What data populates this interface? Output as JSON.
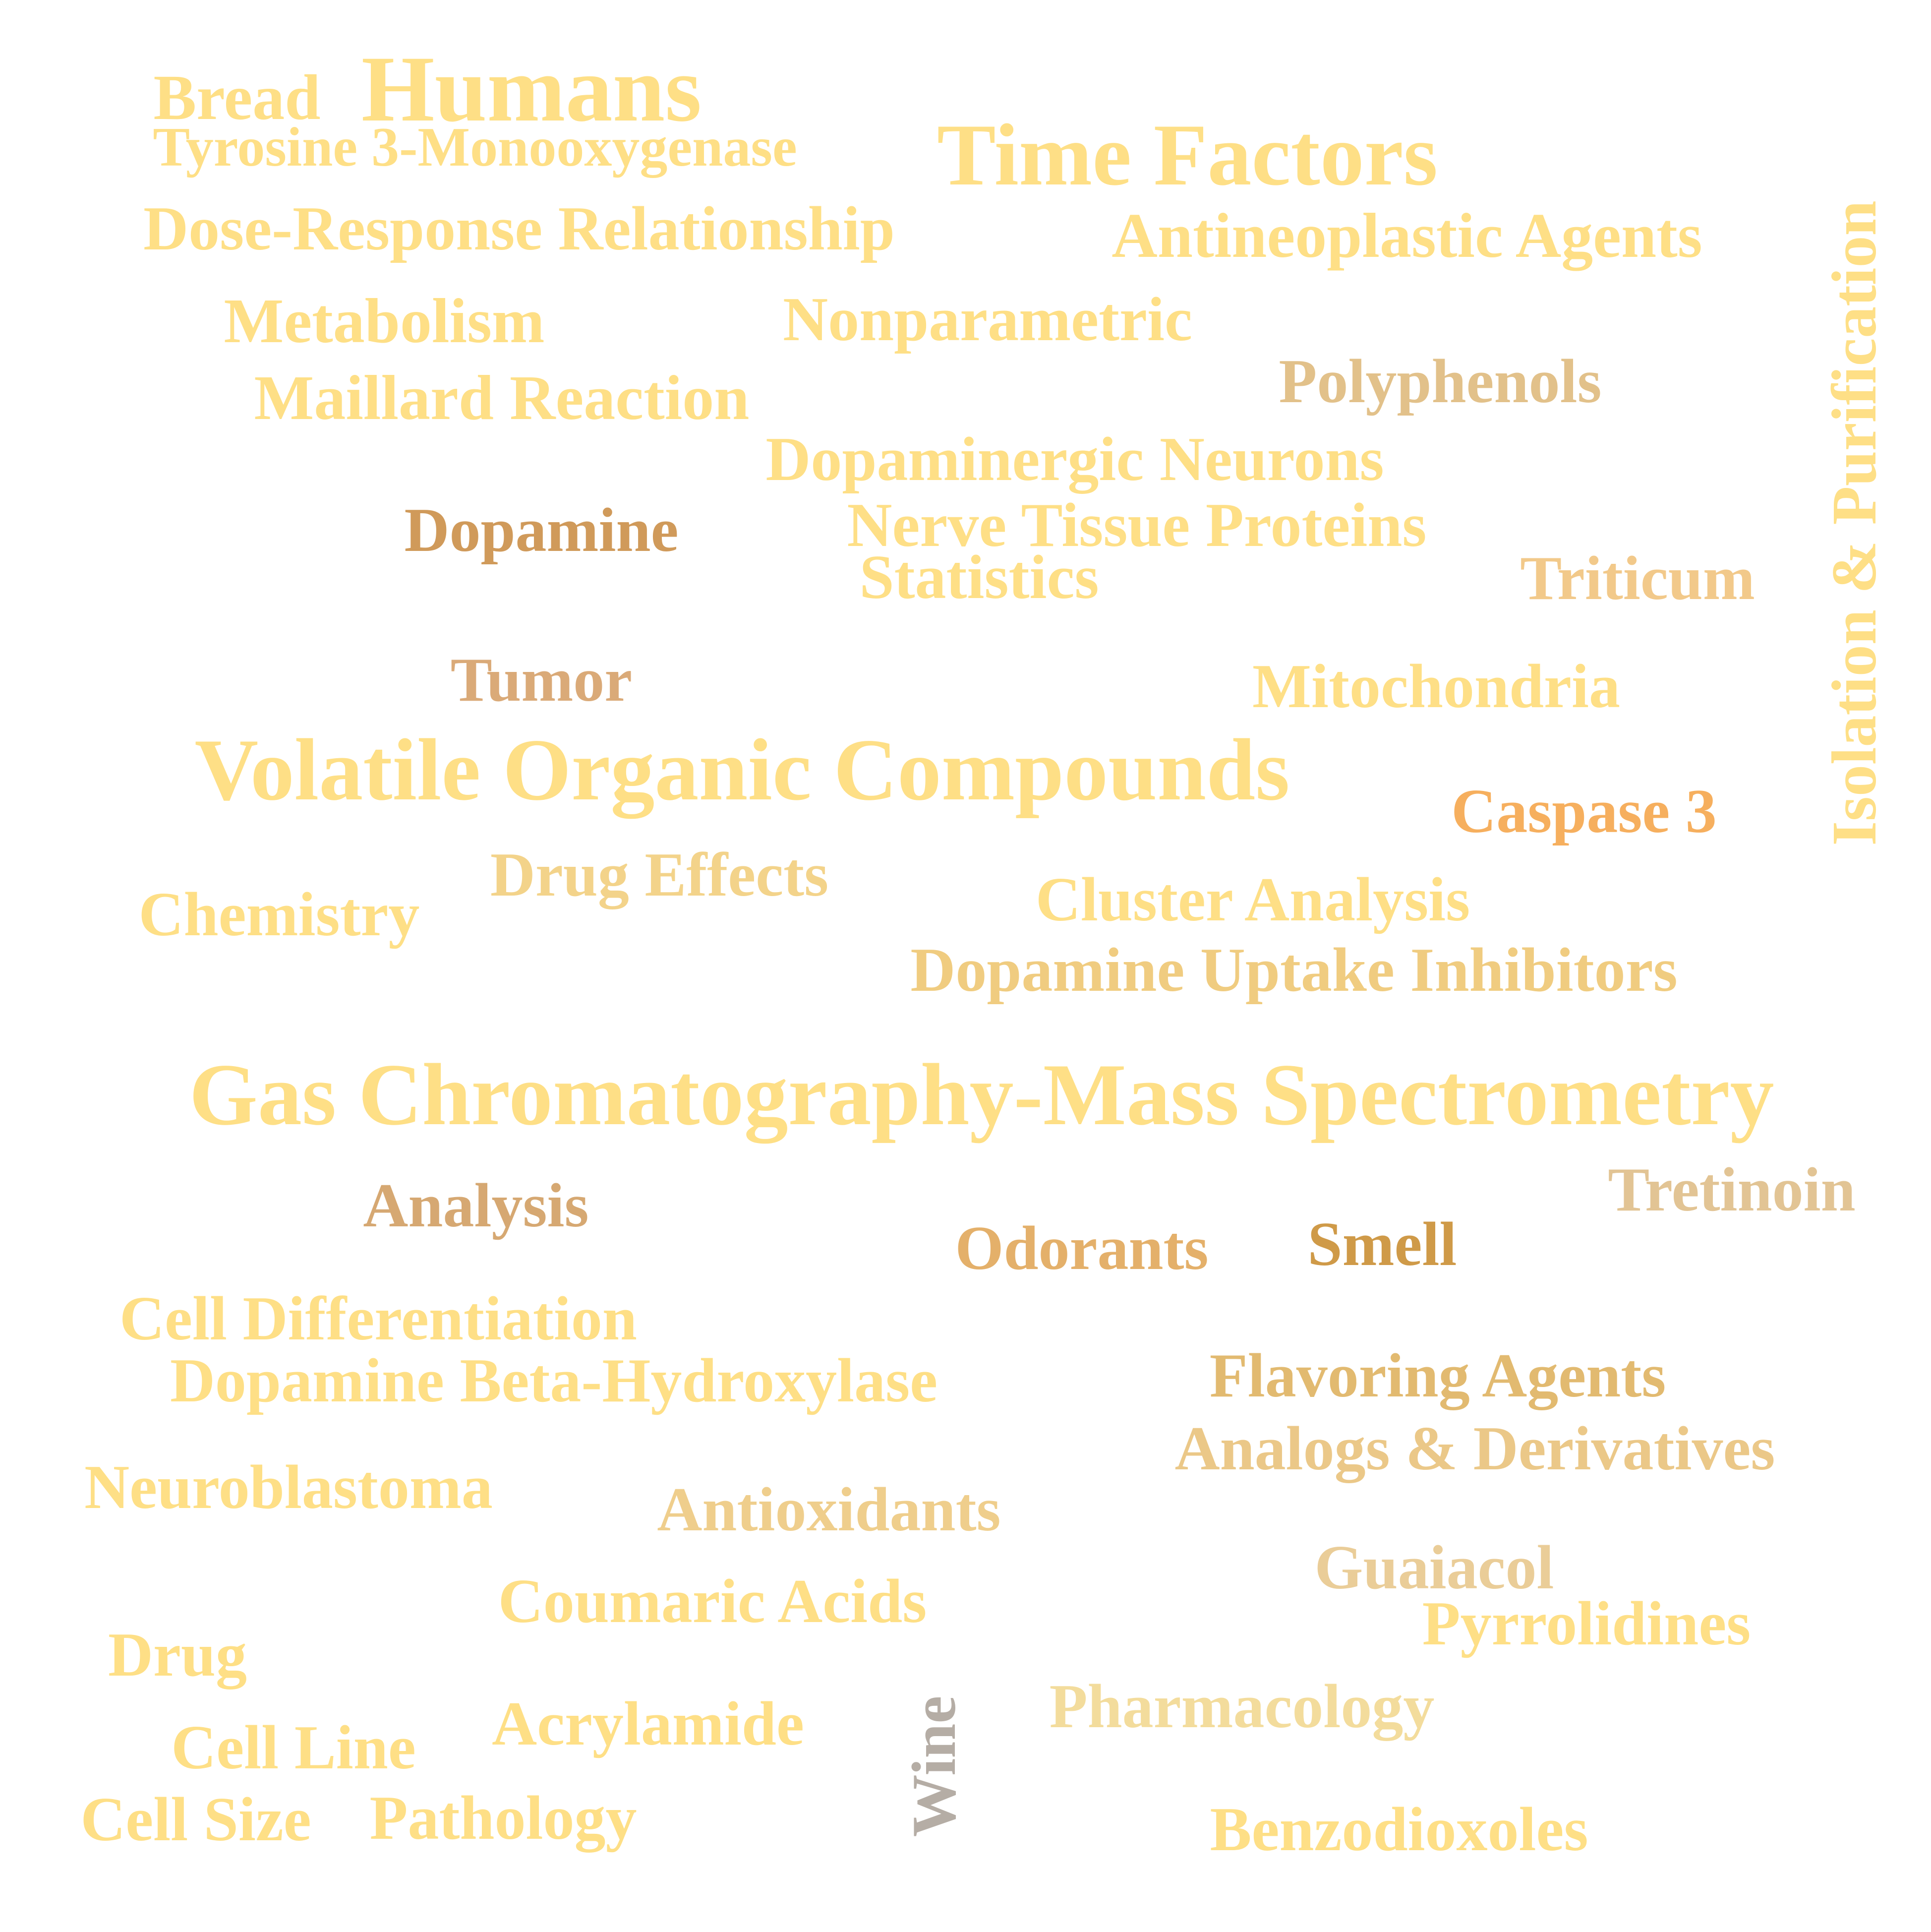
{
  "words": [
    {
      "id": "bread",
      "text": "Bread",
      "color": "#FEDF86"
    },
    {
      "id": "humans",
      "text": "Humans",
      "color": "#FEDF86"
    },
    {
      "id": "tyrosine-3-monooxygenase",
      "text": "Tyrosine 3-Monooxygenase",
      "color": "#FEDF86"
    },
    {
      "id": "time-factors",
      "text": "Time Factors",
      "color": "#FEDF86"
    },
    {
      "id": "dose-response-relationship",
      "text": "Dose-Response Relationship",
      "color": "#FEDF86"
    },
    {
      "id": "antineoplastic-agents",
      "text": "Antineoplastic Agents",
      "color": "#FEDF86"
    },
    {
      "id": "isolation-purification",
      "text": "Isolation & Purification",
      "color": "#FEDF86"
    },
    {
      "id": "metabolism",
      "text": "Metabolism",
      "color": "#FEDF86"
    },
    {
      "id": "nonparametric",
      "text": "Nonparametric",
      "color": "#FEDF86"
    },
    {
      "id": "polyphenols",
      "text": "Polyphenols",
      "color": "#E2C18A"
    },
    {
      "id": "maillard-reaction",
      "text": "Maillard Reaction",
      "color": "#FEDF86"
    },
    {
      "id": "dopaminergic-neurons",
      "text": "Dopaminergic Neurons",
      "color": "#FEDF86"
    },
    {
      "id": "dopamine",
      "text": "Dopamine",
      "color": "#D09A5A"
    },
    {
      "id": "nerve-tissue-proteins",
      "text": "Nerve Tissue Proteins",
      "color": "#FEDF86"
    },
    {
      "id": "statistics",
      "text": "Statistics",
      "color": "#FEDF86"
    },
    {
      "id": "triticum",
      "text": "Triticum",
      "color": "#F2C98A"
    },
    {
      "id": "tumor",
      "text": "Tumor",
      "color": "#DAAA78"
    },
    {
      "id": "mitochondria",
      "text": "Mitochondria",
      "color": "#FEDF86"
    },
    {
      "id": "volatile-organic-compounds",
      "text": "Volatile Organic Compounds",
      "color": "#FEDF86"
    },
    {
      "id": "caspase-3",
      "text": "Caspase 3",
      "color": "#F6AF5E"
    },
    {
      "id": "drug-effects",
      "text": "Drug Effects",
      "color": "#F3D38A"
    },
    {
      "id": "chemistry",
      "text": "Chemistry",
      "color": "#FEDF86"
    },
    {
      "id": "cluster-analysis",
      "text": "Cluster Analysis",
      "color": "#FEDF86"
    },
    {
      "id": "dopamine-uptake-inhibitors",
      "text": "Dopamine Uptake Inhibitors",
      "color": "#F0CC80"
    },
    {
      "id": "gas-chromatography-mass-spectrometry",
      "text": "Gas Chromatography-Mass Spectrometry",
      "color": "#FEDF86"
    },
    {
      "id": "tretinoin",
      "text": "Tretinoin",
      "color": "#E2C494"
    },
    {
      "id": "analysis",
      "text": "Analysis",
      "color": "#D6A872"
    },
    {
      "id": "odorants",
      "text": "Odorants",
      "color": "#E4B06A"
    },
    {
      "id": "smell",
      "text": "Smell",
      "color": "#CF9A48"
    },
    {
      "id": "cell-differentiation",
      "text": "Cell Differentiation",
      "color": "#FEDF86"
    },
    {
      "id": "dopamine-beta-hydroxylase",
      "text": "Dopamine Beta-Hydroxylase",
      "color": "#FEDF86"
    },
    {
      "id": "flavoring-agents",
      "text": "Flavoring Agents",
      "color": "#E2BA70"
    },
    {
      "id": "analogs-derivatives",
      "text": "Analogs & Derivatives",
      "color": "#EBC888"
    },
    {
      "id": "neuroblastoma",
      "text": "Neuroblastoma",
      "color": "#FEDF86"
    },
    {
      "id": "antioxidants",
      "text": "Antioxidants",
      "color": "#EFCE8C"
    },
    {
      "id": "guaiacol",
      "text": "Guaiacol",
      "color": "#EACD98"
    },
    {
      "id": "coumaric-acids",
      "text": "Coumaric Acids",
      "color": "#FEDF86"
    },
    {
      "id": "pyrrolidines",
      "text": "Pyrrolidines",
      "color": "#FEDF86"
    },
    {
      "id": "drug",
      "text": "Drug",
      "color": "#FEDF86"
    },
    {
      "id": "wine",
      "text": "Wine",
      "color": "#B5ADA5"
    },
    {
      "id": "pharmacology",
      "text": "Pharmacology",
      "color": "#F3DC9C"
    },
    {
      "id": "cell-line",
      "text": "Cell Line",
      "color": "#FEDF86"
    },
    {
      "id": "acrylamide",
      "text": "Acrylamide",
      "color": "#FEDF86"
    },
    {
      "id": "cell-size",
      "text": "Cell Size",
      "color": "#FEDF86"
    },
    {
      "id": "pathology",
      "text": "Pathology",
      "color": "#FEDF86"
    },
    {
      "id": "benzodioxoles",
      "text": "Benzodioxoles",
      "color": "#FEDF86"
    }
  ]
}
